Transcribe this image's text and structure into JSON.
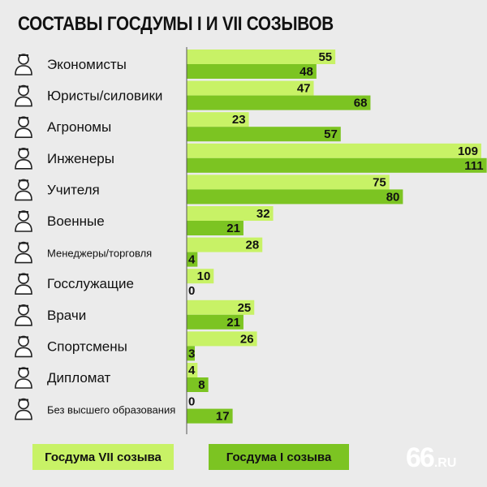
{
  "title": "СОСТАВЫ ГОСДУМЫ I И VII СОЗЫВОВ",
  "colors": {
    "vii": "#c8f266",
    "i": "#7cc422",
    "background": "#ebebeb"
  },
  "legend": {
    "vii_label": "Госдума VII созыва",
    "i_label": "Госдума I созыва"
  },
  "logo": {
    "number": "66",
    "suffix": ".RU"
  },
  "chart_data": {
    "type": "bar",
    "orientation": "horizontal",
    "categories": [
      {
        "label": "Экономисты",
        "icon": "economist-icon"
      },
      {
        "label": "Юристы/силовики",
        "icon": "lawyer-icon"
      },
      {
        "label": "Агрономы",
        "icon": "agronomist-icon"
      },
      {
        "label": "Инженеры",
        "icon": "engineer-icon"
      },
      {
        "label": "Учителя",
        "icon": "teacher-icon"
      },
      {
        "label": "Военные",
        "icon": "military-icon"
      },
      {
        "label": "Менеджеры/торговля",
        "icon": "manager-icon"
      },
      {
        "label": "Госслужащие",
        "icon": "civil-servant-icon"
      },
      {
        "label": "Врачи",
        "icon": "doctor-icon"
      },
      {
        "label": "Спортсмены",
        "icon": "athlete-icon"
      },
      {
        "label": "Дипломат",
        "icon": "diplomat-icon"
      },
      {
        "label": "Без высшего образования",
        "icon": "no-degree-icon"
      }
    ],
    "series": [
      {
        "name": "Госдума VII созыва",
        "color": "#c8f266",
        "values": [
          55,
          47,
          23,
          109,
          75,
          32,
          28,
          10,
          25,
          26,
          4,
          0
        ]
      },
      {
        "name": "Госдума I созыва",
        "color": "#7cc422",
        "values": [
          48,
          68,
          57,
          111,
          80,
          21,
          4,
          0,
          21,
          3,
          8,
          17
        ]
      }
    ],
    "xlim": [
      0,
      111
    ],
    "grid": false,
    "legend_position": "bottom"
  }
}
